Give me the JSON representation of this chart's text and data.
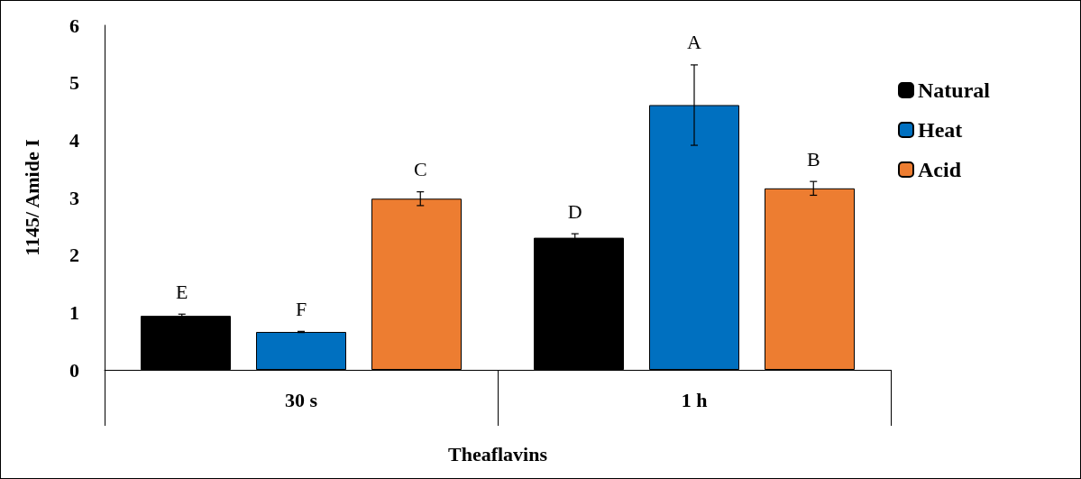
{
  "chart_data": {
    "type": "bar",
    "xlabel": "Theaflavins",
    "ylabel": "1145/ Amide I",
    "categories": [
      "30 s",
      "1 h"
    ],
    "series": [
      {
        "name": "Natural",
        "color": "#000000",
        "values": [
          0.94,
          2.3
        ],
        "errors": [
          0.03,
          0.07
        ],
        "value_labels": [
          "E",
          "D"
        ]
      },
      {
        "name": "Heat",
        "color": "#0070c0",
        "values": [
          0.66,
          4.61
        ],
        "errors": [
          0.01,
          0.7
        ],
        "value_labels": [
          "F",
          "A"
        ]
      },
      {
        "name": "Acid",
        "color": "#ed7d31",
        "values": [
          2.98,
          3.16
        ],
        "errors": [
          0.12,
          0.12
        ],
        "value_labels": [
          "C",
          "B"
        ]
      }
    ],
    "ylim": [
      0,
      6
    ],
    "yticks": [
      0,
      1,
      2,
      3,
      4,
      5,
      6
    ],
    "grid": false,
    "legend": "top right"
  }
}
